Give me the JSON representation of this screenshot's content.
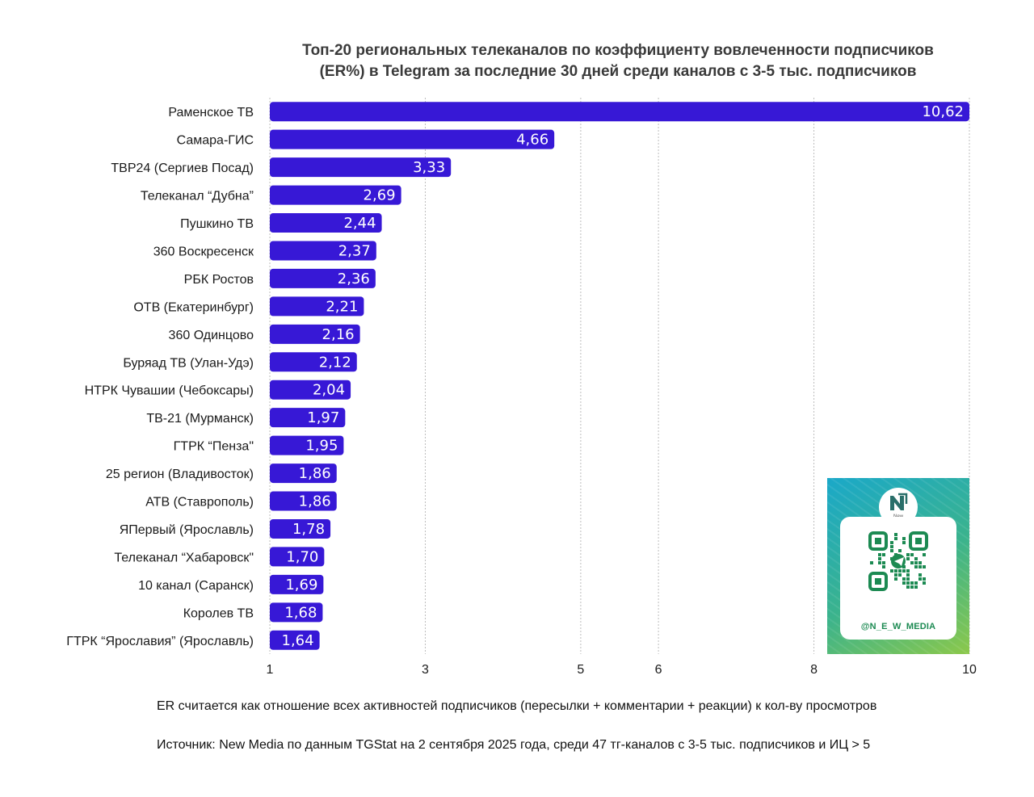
{
  "title_lines": [
    "Топ-20 региональных телеканалов по коэффициенту вовлеченности подписчиков",
    "(ER%) в Telegram за последние 30 дней среди каналов с 3-5 тыс. подписчиков"
  ],
  "chart_data": {
    "type": "bar",
    "orientation": "horizontal",
    "categories": [
      "Раменское ТВ",
      "Самара-ГИС",
      "ТВР24 (Сергиев Посад)",
      "Телеканал “Дубна”",
      "Пушкино ТВ",
      "360 Воскресенск",
      "РБК Ростов",
      "ОТВ (Екатеринбург)",
      "360 Одинцово",
      "Буряад ТВ (Улан-Удэ)",
      "НТРК Чувашии (Чебоксары)",
      "ТВ-21 (Мурманск)",
      "ГТРК “Пенза\"",
      "25 регион (Владивосток)",
      "АТВ (Ставрополь)",
      "ЯПервый (Ярославль)",
      "Телеканал “Хабаровск\"",
      "10 канал (Саранск)",
      "Королев ТВ",
      "ГТРК “Ярославия” (Ярославль)"
    ],
    "values": [
      10.62,
      4.66,
      3.33,
      2.69,
      2.44,
      2.37,
      2.36,
      2.21,
      2.16,
      2.12,
      2.04,
      1.97,
      1.95,
      1.86,
      1.86,
      1.78,
      1.7,
      1.69,
      1.68,
      1.64
    ],
    "value_labels": [
      "10,62",
      "4,66",
      "3,33",
      "2,69",
      "2,44",
      "2,37",
      "2,36",
      "2,21",
      "2,16",
      "2,12",
      "2,04",
      "1,97",
      "1,95",
      "1,86",
      "1,86",
      "1,78",
      "1,70",
      "1,69",
      "1,68",
      "1,64"
    ],
    "x_ticks": [
      1,
      3,
      5,
      6,
      8,
      10
    ],
    "x_tick_labels": [
      "1",
      "3",
      "5",
      "6",
      "8",
      "10"
    ],
    "xlim": [
      1,
      10
    ],
    "grid": "vertical dotted",
    "bar_color": "#3718d6",
    "label_color": "#ffffff"
  },
  "footnotes": {
    "er_note": "ER считается как отношение всех активностей подписчиков (пересылки + комментарии + реакции) к кол-ву просмотров",
    "source": "Источник: New Media по данным TGStat на 2 сентября 2025 года, среди 47 тг-каналов с 3-5 тыс. подписчиков и ИЦ > 5"
  },
  "qr_card": {
    "logo_text": "New Media",
    "handle": "@N_E_W_MEDIA",
    "accent": "#1c8a52"
  }
}
